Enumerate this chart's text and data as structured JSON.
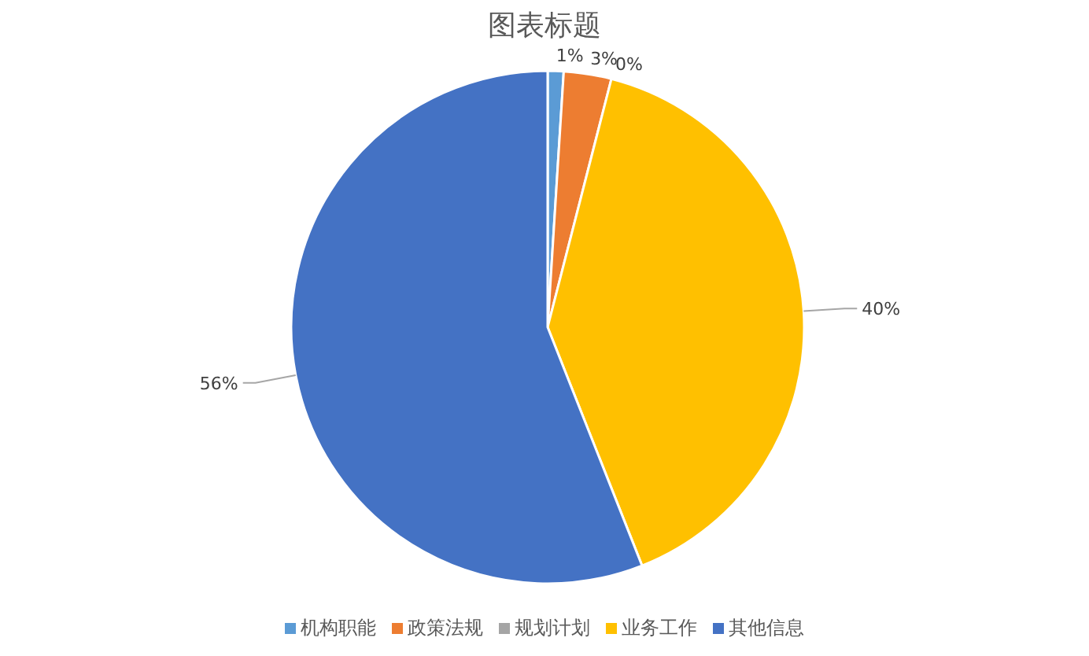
{
  "chart_data": {
    "type": "pie",
    "title": "图表标题",
    "categories": [
      "机构职能",
      "政策法规",
      "规划计划",
      "业务工作",
      "其他信息"
    ],
    "values": [
      1,
      3,
      0,
      40,
      56
    ],
    "value_labels": [
      "1%",
      "3%",
      "0%",
      "40%",
      "56%"
    ],
    "colors": [
      "#5b9bd5",
      "#ed7d31",
      "#a5a5a5",
      "#ffc000",
      "#4472c4"
    ],
    "legend": "bottom"
  }
}
